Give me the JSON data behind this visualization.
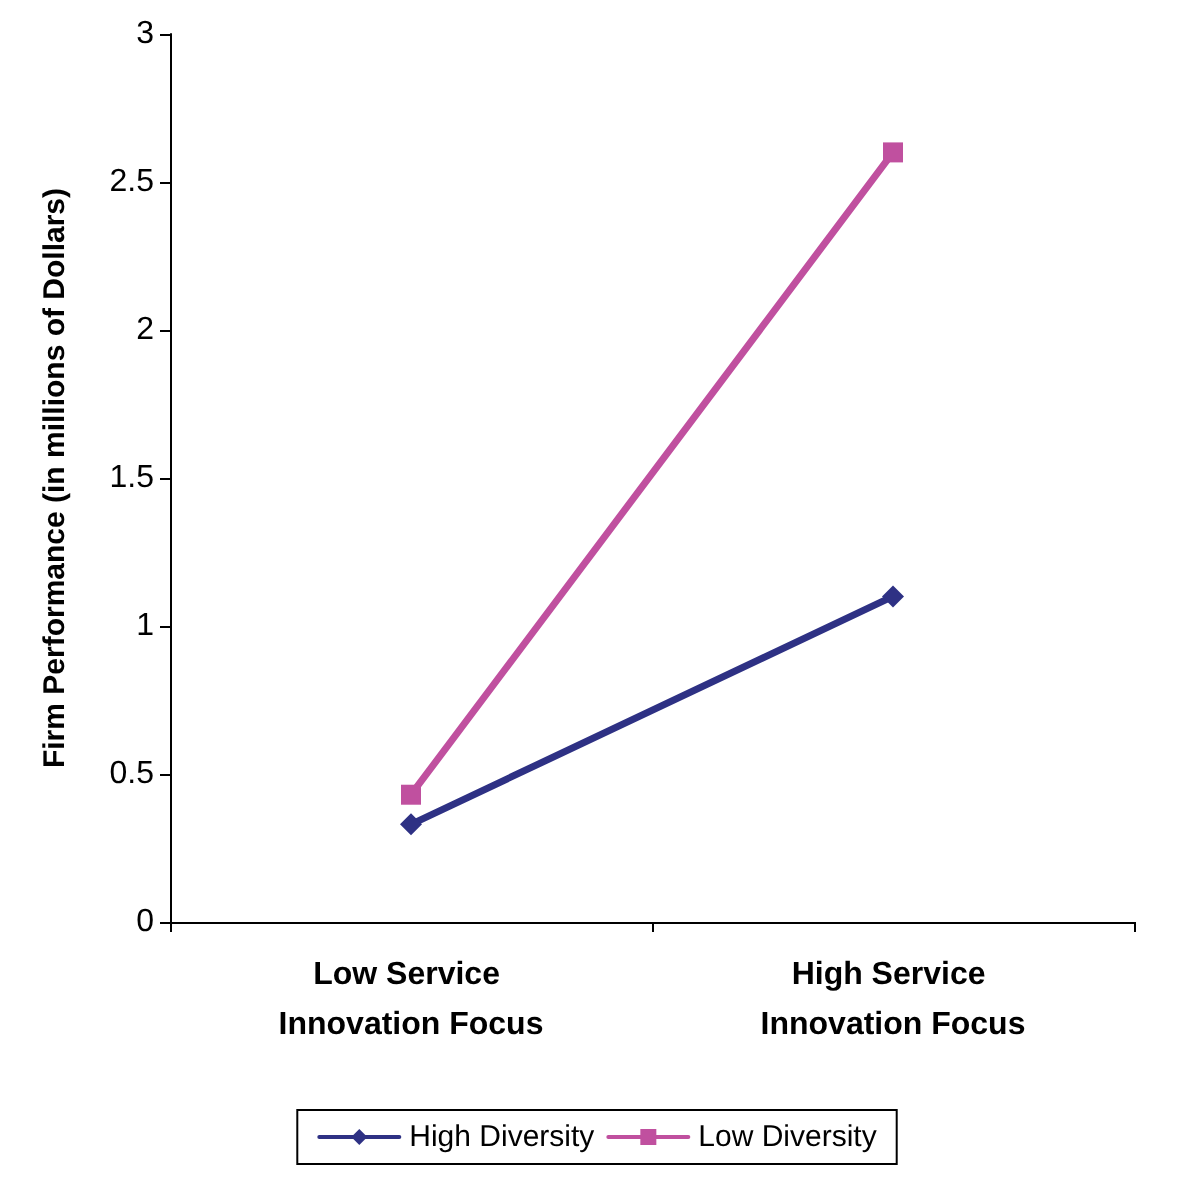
{
  "chart_data": {
    "type": "line",
    "ylabel": "Firm Performance (in millions of Dollars)",
    "categories": [
      "Low Service Innovation Focus",
      "High Service Innovation Focus"
    ],
    "series": [
      {
        "name": "High Diversity",
        "color": "#2e3184",
        "values": [
          0.33,
          1.1
        ],
        "marker": "diamond"
      },
      {
        "name": "Low Diversity",
        "color": "#c0509f",
        "values": [
          0.43,
          2.6
        ],
        "marker": "square"
      }
    ],
    "ylim": [
      0,
      3
    ],
    "yticks": [
      0,
      0.5,
      1,
      1.5,
      2,
      2.5,
      3
    ],
    "grid": false,
    "legend": "bottom",
    "line_style": "solid"
  }
}
